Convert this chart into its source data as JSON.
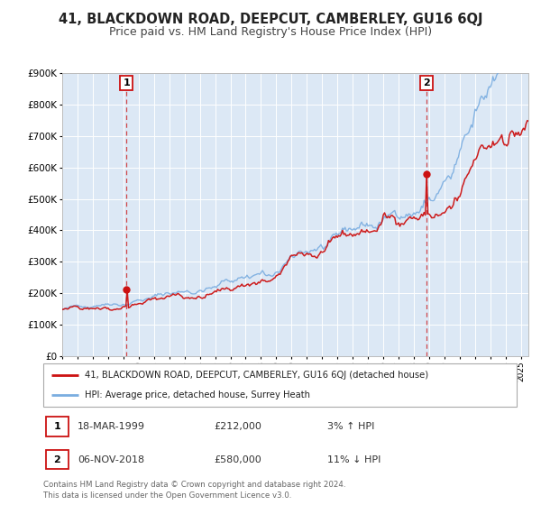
{
  "title": "41, BLACKDOWN ROAD, DEEPCUT, CAMBERLEY, GU16 6QJ",
  "subtitle": "Price paid vs. HM Land Registry's House Price Index (HPI)",
  "ylim": [
    0,
    900000
  ],
  "xlim_start": 1995.0,
  "xlim_end": 2025.5,
  "plot_bg": "#dce8f5",
  "grid_color": "#ffffff",
  "red_line_color": "#cc1111",
  "blue_line_color": "#7aade0",
  "marker1_date": 1999.21,
  "marker1_price": 212000,
  "marker2_date": 2018.85,
  "marker2_price": 580000,
  "legend_label_red": "41, BLACKDOWN ROAD, DEEPCUT, CAMBERLEY, GU16 6QJ (detached house)",
  "legend_label_blue": "HPI: Average price, detached house, Surrey Heath",
  "table_row1": [
    "1",
    "18-MAR-1999",
    "£212,000",
    "3% ↑ HPI"
  ],
  "table_row2": [
    "2",
    "06-NOV-2018",
    "£580,000",
    "11% ↓ HPI"
  ],
  "footer": "Contains HM Land Registry data © Crown copyright and database right 2024.\nThis data is licensed under the Open Government Licence v3.0.",
  "title_fontsize": 10.5,
  "subtitle_fontsize": 9
}
